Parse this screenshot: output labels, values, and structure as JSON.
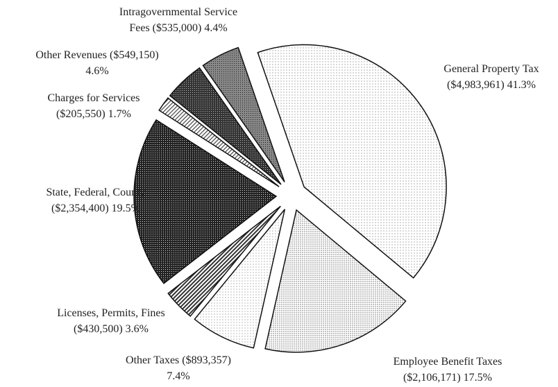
{
  "chart_data": {
    "type": "pie",
    "categories": [
      "General Property Tax",
      "Employee Benefit Taxes",
      "Other Taxes",
      "Licenses, Permits, Fines",
      "State, Federal, County",
      "Charges for Services",
      "Other Revenues",
      "Intragovernmental Service Fees"
    ],
    "values": [
      4983961,
      2106171,
      893357,
      430500,
      2354400,
      205550,
      549150,
      535000
    ],
    "value_labels": [
      "($4,983,961)",
      "($2,106,171)",
      "($893,357)",
      "($430,500)",
      "($2,354,400)",
      "($205,550)",
      "($549,150)",
      "($535,000)"
    ],
    "percents": [
      41.3,
      17.5,
      7.4,
      3.6,
      19.5,
      1.7,
      4.6,
      4.4
    ],
    "percent_labels": [
      "41.3%",
      "17.5%",
      "7.4%",
      "3.6%",
      "19.5%",
      "1.7%",
      "4.6%",
      "4.4%"
    ]
  }
}
